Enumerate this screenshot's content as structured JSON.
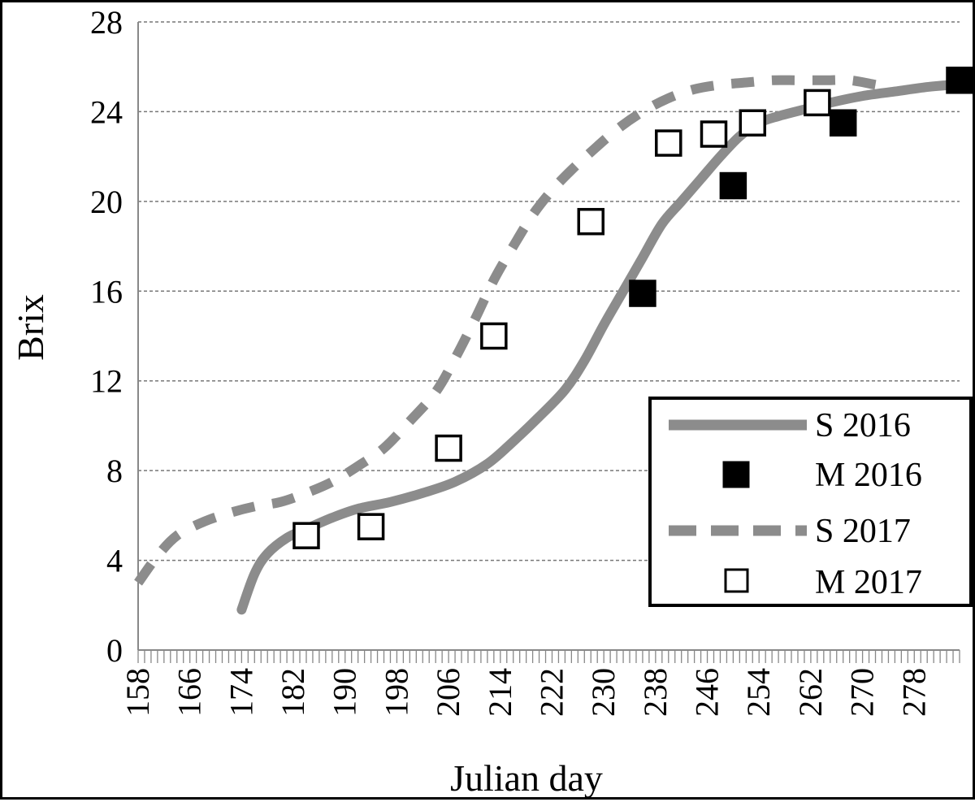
{
  "chart_data": {
    "type": "line",
    "xlabel": "Julian day",
    "ylabel": "Brix",
    "xlim": [
      158,
      285
    ],
    "ylim": [
      0,
      28
    ],
    "y_ticks": [
      0,
      4,
      8,
      12,
      16,
      20,
      24,
      28
    ],
    "x_ticks": [
      158,
      166,
      174,
      182,
      190,
      198,
      206,
      214,
      222,
      230,
      238,
      246,
      254,
      262,
      270,
      278
    ],
    "grid": "horizontal dashed",
    "legend_position": "bottom-right",
    "series": [
      {
        "name": "S 2016",
        "kind": "line",
        "style": "solid",
        "color": "#8c8c8c",
        "x": [
          174,
          176,
          178,
          181,
          184,
          188,
          192,
          197,
          202,
          207,
          212,
          216,
          220,
          224,
          227,
          230,
          233,
          236,
          239,
          242,
          245,
          248,
          251,
          254,
          257,
          261,
          265,
          270,
          275,
          280,
          284
        ],
        "y": [
          1.8,
          3.4,
          4.3,
          5.0,
          5.4,
          5.9,
          6.3,
          6.6,
          7.0,
          7.5,
          8.3,
          9.3,
          10.4,
          11.6,
          12.9,
          14.5,
          16.0,
          17.5,
          19.0,
          20.0,
          21.0,
          22.0,
          22.9,
          23.5,
          23.8,
          24.1,
          24.4,
          24.7,
          24.9,
          25.1,
          25.2
        ]
      },
      {
        "name": "M 2016",
        "kind": "marker",
        "marker": "filled-square",
        "color": "#000000",
        "x": [
          236,
          250,
          267,
          285
        ],
        "y": [
          15.9,
          20.7,
          23.5,
          25.4
        ]
      },
      {
        "name": "S 2017",
        "kind": "line",
        "style": "dashed",
        "color": "#8c8c8c",
        "x": [
          158,
          161,
          164,
          168,
          172,
          176,
          180,
          184,
          188,
          192,
          196,
          200,
          204,
          207,
          210,
          213,
          216,
          219,
          222,
          225,
          228,
          232,
          236,
          240,
          244,
          248,
          252,
          256,
          260,
          264,
          268,
          272
        ],
        "y": [
          3.0,
          4.2,
          5.1,
          5.7,
          6.1,
          6.4,
          6.6,
          7.0,
          7.5,
          8.2,
          9.0,
          10.2,
          11.5,
          13.0,
          14.7,
          16.5,
          18.0,
          19.4,
          20.5,
          21.4,
          22.2,
          23.2,
          24.0,
          24.6,
          25.0,
          25.2,
          25.3,
          25.4,
          25.4,
          25.4,
          25.4,
          25.2
        ]
      },
      {
        "name": "M 2017",
        "kind": "marker",
        "marker": "open-square",
        "color": "#000000",
        "x": [
          184,
          194,
          206,
          213,
          228,
          240,
          247,
          253,
          263
        ],
        "y": [
          5.1,
          5.5,
          9.0,
          14.0,
          19.1,
          22.6,
          23.0,
          23.5,
          24.4
        ]
      }
    ]
  }
}
